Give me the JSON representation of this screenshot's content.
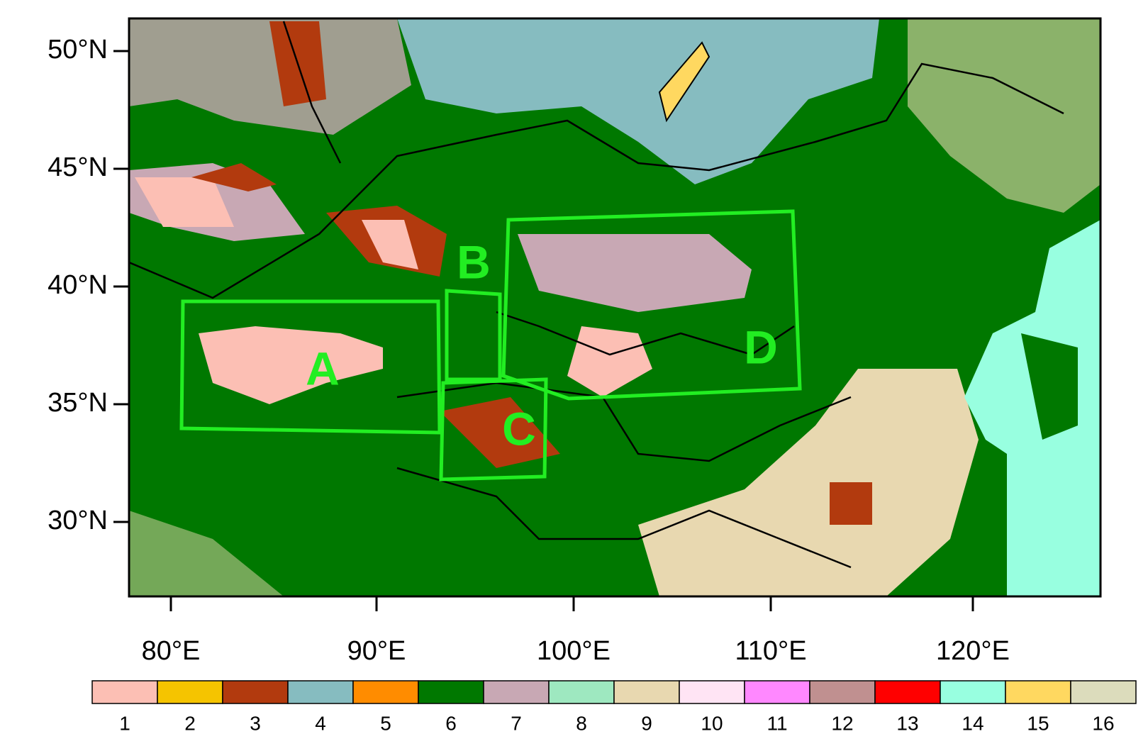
{
  "map": {
    "lat_labels": [
      "50°N",
      "45°N",
      "40°N",
      "35°N",
      "30°N"
    ],
    "lon_labels": [
      "80°E",
      "90°E",
      "100°E",
      "110°E",
      "120°E"
    ],
    "regions": [
      {
        "label": "A"
      },
      {
        "label": "B"
      },
      {
        "label": "C"
      },
      {
        "label": "D"
      }
    ],
    "legend": [
      {
        "label": "1",
        "color": "#fcbfb4"
      },
      {
        "label": "2",
        "color": "#f5c400"
      },
      {
        "label": "3",
        "color": "#b23a0e"
      },
      {
        "label": "4",
        "color": "#86bcc0"
      },
      {
        "label": "5",
        "color": "#ff8c00"
      },
      {
        "label": "6",
        "color": "#007800"
      },
      {
        "label": "7",
        "color": "#c8a8b4"
      },
      {
        "label": "8",
        "color": "#9ee8c0"
      },
      {
        "label": "9",
        "color": "#e8d8b0"
      },
      {
        "label": "10",
        "color": "#ffe4f4"
      },
      {
        "label": "11",
        "color": "#ff88ff"
      },
      {
        "label": "12",
        "color": "#c09090"
      },
      {
        "label": "13",
        "color": "#ff0000"
      },
      {
        "label": "14",
        "color": "#98ffe0"
      },
      {
        "label": "15",
        "color": "#ffd860"
      },
      {
        "label": "16",
        "color": "#dcdcbc"
      }
    ]
  }
}
